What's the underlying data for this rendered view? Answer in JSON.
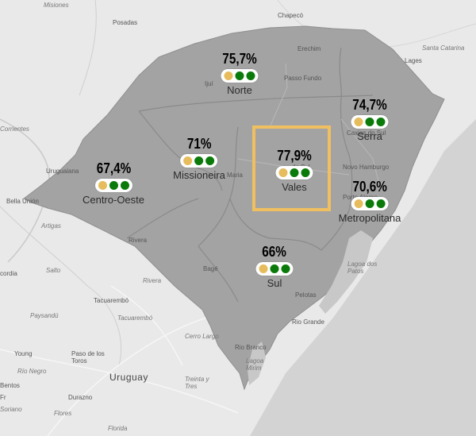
{
  "colors": {
    "land": "#e9e9e9",
    "ocean": "#d3d3d3",
    "state_fill": "#a3a3a3",
    "region_border": "#8e8e8e",
    "dot_yellow": "#e6bc5c",
    "dot_green": "#0a7a0a",
    "highlight": "#f0c060"
  },
  "regions": [
    {
      "id": "norte",
      "name": "Norte",
      "value": "75,7%",
      "indicator_dots": [
        "yellow",
        "green",
        "green"
      ]
    },
    {
      "id": "serra",
      "name": "Serra",
      "value": "74,7%",
      "indicator_dots": [
        "yellow",
        "green",
        "green"
      ]
    },
    {
      "id": "missioneira",
      "name": "Missioneira",
      "value": "71%",
      "indicator_dots": [
        "yellow",
        "green",
        "green"
      ]
    },
    {
      "id": "vales",
      "name": "Vales",
      "value": "77,9%",
      "indicator_dots": [
        "yellow",
        "green",
        "green"
      ],
      "highlighted": true
    },
    {
      "id": "centro-oeste",
      "name": "Centro-Oeste",
      "value": "67,4%",
      "indicator_dots": [
        "yellow",
        "green",
        "green"
      ]
    },
    {
      "id": "metropolitana",
      "name": "Metropolitana",
      "value": "70,6%",
      "indicator_dots": [
        "yellow",
        "green",
        "green"
      ]
    },
    {
      "id": "sul",
      "name": "Sul",
      "value": "66%",
      "indicator_dots": [
        "yellow",
        "green",
        "green"
      ]
    }
  ],
  "places": {
    "misiones": "Misiones",
    "posadas": "Posadas",
    "chapeco": "Chapecó",
    "erechim": "Erechim",
    "lages": "Lages",
    "santa_catarina": "Santa Catarina",
    "passo_fundo": "Passo Fundo",
    "caxias_do_sul": "Caxias do Sul",
    "corrientes": "Corrientes",
    "uruguaiana": "Uruguaiana",
    "santa_maria": "Maria",
    "novo_hamburgo": "Novo Hamburgo",
    "porto_alegre": "Porto Alegre",
    "bella_union": "Bella Unión",
    "artigas": "Artigas",
    "rivera": "Rivera",
    "salto": "Salto",
    "cordia": "cordia",
    "bage": "Bagé",
    "lagoa_dos_patos": "Lagoa dos Patos",
    "pelotas": "Pelotas",
    "tacuarembo_city": "Tacuarembó",
    "paysandu": "Paysandú",
    "tacuarembo_dept": "Tacuarembó",
    "rio_grande": "Rio Grande",
    "cerro_largo": "Cerro Largo",
    "rio_branco": "Rio Branco",
    "young": "Young",
    "paso_de_los_toros": "Paso de los Toros",
    "rio_negro": "Río Negro",
    "uruguay": "Uruguay",
    "lagoa_mirim": "Lagoa Mirim",
    "bentos": "Bentos",
    "durazno": "Durazno",
    "treinta_y_tres": "Treinta y Tres",
    "soriano": "Soriano",
    "flores": "Flores",
    "florida": "Florida",
    "fr": "Fr",
    "ijui": "Ijuí",
    "do_sul": "do Sul"
  }
}
